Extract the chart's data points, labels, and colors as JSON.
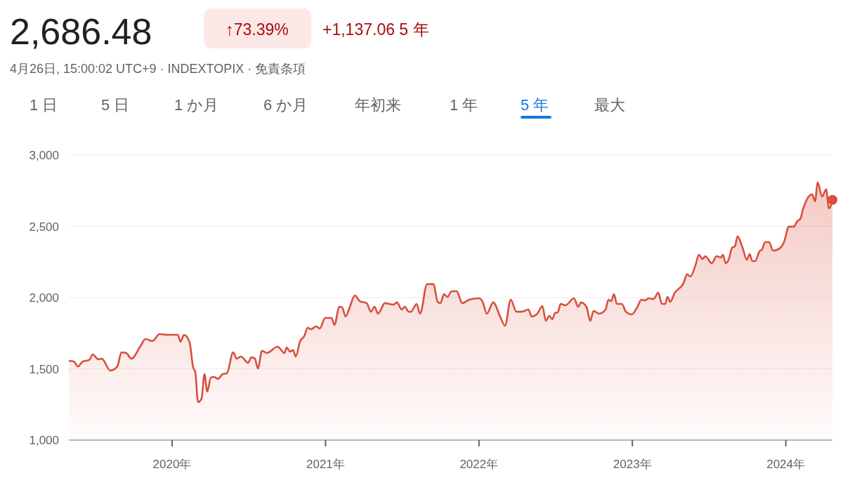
{
  "chart_data": {
    "type": "area",
    "title": "2,686.48",
    "subtitle": "4月26日, 15:00:02 UTC+9 · INDEXTOPIX · 免責条項",
    "annotations": [
      "↑73.39%",
      "+1,137.06 5 年",
      "1 日",
      "5 日",
      "1 か月",
      "6 か月",
      "年初来",
      "1 年",
      "5 年",
      "最大"
    ],
    "x": [
      2019.327,
      2019.359,
      2019.386,
      2019.418,
      2019.46,
      2019.483,
      2019.519,
      2019.542,
      2019.597,
      2019.643,
      2019.67,
      2019.702,
      2019.734,
      2019.794,
      2019.826,
      2019.872,
      2019.918,
      2019.968,
      2020.037,
      2020.055,
      2020.078,
      2020.114,
      2020.137,
      2020.151,
      2020.169,
      2020.192,
      2020.211,
      2020.229,
      2020.252,
      2020.275,
      2020.298,
      2020.33,
      2020.357,
      2020.398,
      2020.421,
      2020.449,
      2020.495,
      2020.517,
      2020.54,
      2020.559,
      2020.586,
      2020.618,
      2020.687,
      2020.733,
      2020.746,
      2020.769,
      2020.788,
      2020.806,
      2020.833,
      2020.861,
      2020.884,
      2020.907,
      2020.939,
      2020.962,
      2020.998,
      2021.039,
      2021.058,
      2021.09,
      2021.108,
      2021.131,
      2021.154,
      2021.191,
      2021.223,
      2021.268,
      2021.296,
      2021.319,
      2021.342,
      2021.387,
      2021.442,
      2021.465,
      2021.497,
      2021.516,
      2021.543,
      2021.557,
      2021.594,
      2021.616,
      2021.662,
      2021.703,
      2021.731,
      2021.749,
      2021.772,
      2021.795,
      2021.822,
      2021.855,
      2021.891,
      2021.937,
      2022.001,
      2022.024,
      2022.051,
      2022.093,
      2022.138,
      2022.17,
      2022.207,
      2022.244,
      2022.28,
      2022.322,
      2022.344,
      2022.381,
      2022.413,
      2022.436,
      2022.459,
      2022.477,
      2022.496,
      2022.514,
      2022.532,
      2022.564,
      2022.619,
      2022.647,
      2022.665,
      2022.702,
      2022.725,
      2022.747,
      2022.784,
      2022.825,
      2022.844,
      2022.862,
      2022.88,
      2022.899,
      2022.931,
      2022.958,
      2022.995,
      2023.031,
      2023.059,
      2023.082,
      2023.105,
      2023.137,
      2023.169,
      2023.192,
      2023.214,
      2023.228,
      2023.247,
      2023.274,
      2023.334,
      2023.356,
      2023.379,
      2023.411,
      2023.434,
      2023.457,
      2023.475,
      2023.517,
      2023.549,
      2023.576,
      2023.59,
      2023.608,
      2023.627,
      2023.65,
      2023.668,
      2023.686,
      2023.718,
      2023.746,
      2023.764,
      2023.782,
      2023.801,
      2023.828,
      2023.846,
      2023.865,
      2023.892,
      2023.915,
      2023.952,
      2023.988,
      2024.02,
      2024.052,
      2024.075,
      2024.094,
      2024.112,
      2024.158,
      2024.172,
      2024.19,
      2024.208,
      2024.236,
      2024.263,
      2024.281,
      2024.304
    ],
    "series": [
      {
        "color": "#d94f3d",
        "values": [
          1557,
          1552,
          1517,
          1552,
          1562,
          1601,
          1567,
          1571,
          1488,
          1517,
          1616,
          1611,
          1571,
          1660,
          1709,
          1695,
          1744,
          1739,
          1739,
          1690,
          1739,
          1685,
          1512,
          1478,
          1266,
          1291,
          1463,
          1340,
          1438,
          1443,
          1429,
          1463,
          1468,
          1616,
          1571,
          1586,
          1542,
          1581,
          1571,
          1502,
          1626,
          1611,
          1655,
          1611,
          1650,
          1621,
          1631,
          1586,
          1690,
          1729,
          1788,
          1778,
          1798,
          1783,
          1857,
          1857,
          1808,
          1936,
          1931,
          1867,
          1921,
          2015,
          1975,
          1961,
          1901,
          1936,
          1887,
          1961,
          1951,
          1966,
          1916,
          1936,
          1901,
          1901,
          1956,
          1887,
          2094,
          2094,
          1970,
          1961,
          2025,
          2005,
          2044,
          2044,
          1961,
          1985,
          1995,
          1970,
          1887,
          1966,
          1867,
          1803,
          1985,
          1901,
          1901,
          1916,
          1867,
          1887,
          1941,
          1837,
          1872,
          1847,
          1892,
          1897,
          1956,
          1946,
          1995,
          1936,
          1966,
          1931,
          1837,
          1906,
          1887,
          1916,
          1985,
          1975,
          2025,
          1956,
          1956,
          1901,
          1882,
          1931,
          1985,
          1980,
          1995,
          1990,
          2034,
          1956,
          1956,
          2005,
          1970,
          2030,
          2103,
          2163,
          2148,
          2227,
          2300,
          2271,
          2291,
          2241,
          2291,
          2281,
          2300,
          2241,
          2266,
          2350,
          2360,
          2429,
          2350,
          2266,
          2305,
          2256,
          2256,
          2325,
          2340,
          2389,
          2389,
          2330,
          2340,
          2389,
          2498,
          2498,
          2537,
          2552,
          2621,
          2719,
          2724,
          2675,
          2808,
          2709,
          2759,
          2626,
          2686
        ]
      }
    ],
    "xlim": [
      2019.327,
      2024.304
    ],
    "xticks": [
      {
        "value": 2020,
        "label": "2020年"
      },
      {
        "value": 2021,
        "label": "2021年"
      },
      {
        "value": 2022,
        "label": "2022年"
      },
      {
        "value": 2023,
        "label": "2023年"
      },
      {
        "value": 2024,
        "label": "2024年"
      }
    ],
    "ylim": [
      1000,
      3000
    ],
    "yticks": [
      {
        "value": 1000,
        "label": "1,000"
      },
      {
        "value": 1500,
        "label": "1,500"
      },
      {
        "value": 2000,
        "label": "2,000"
      },
      {
        "value": 2500,
        "label": "2,500"
      },
      {
        "value": 3000,
        "label": "3,000"
      }
    ],
    "grid": "y"
  }
}
